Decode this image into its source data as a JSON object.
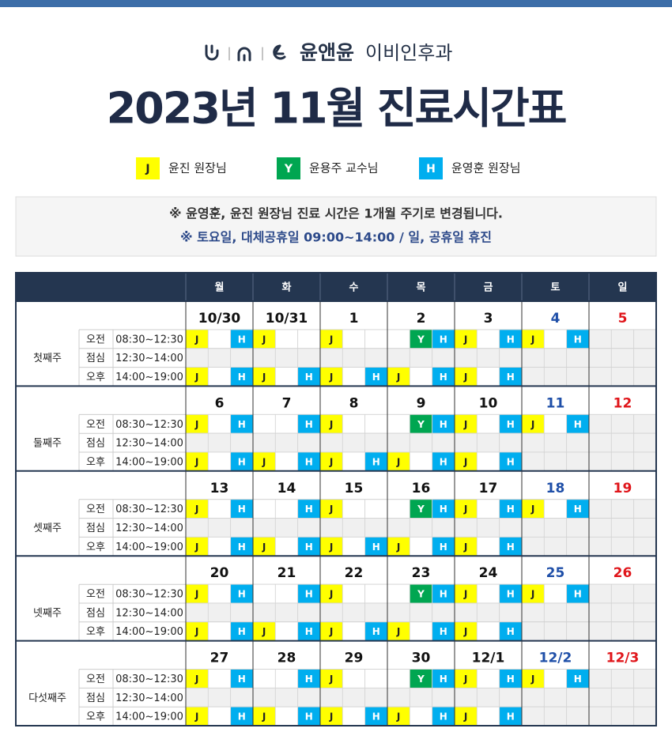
{
  "header": {
    "brand": "윤앤윤",
    "department": "이비인후과",
    "title": "2023년 11월 진료시간표"
  },
  "legend": [
    {
      "key": "J",
      "label": "윤진 원장님",
      "color": "#ffff00",
      "text_color": "#222222"
    },
    {
      "key": "Y",
      "label": "윤용주 교수님",
      "color": "#00a651",
      "text_color": "#ffffff"
    },
    {
      "key": "H",
      "label": "윤영훈 원장님",
      "color": "#00aeef",
      "text_color": "#ffffff"
    }
  ],
  "notices": [
    "※ 윤영훈, 윤진 원장님 진료 시간은 1개월 주기로 변경됩니다.",
    "※ 토요일, 대체공휴일  09:00~14:00 / 일, 공휴일 휴진"
  ],
  "table": {
    "days": [
      "월",
      "화",
      "수",
      "목",
      "금",
      "토",
      "일"
    ],
    "sessions": [
      {
        "label": "오전",
        "time": "08:30~12:30"
      },
      {
        "label": "점심",
        "time": "12:30~14:00"
      },
      {
        "label": "오후",
        "time": "14:00~19:00"
      }
    ],
    "weeks": [
      {
        "label": "첫째주",
        "dates": [
          "10/30",
          "10/31",
          "1",
          "2",
          "3",
          "4",
          "5"
        ],
        "slots": [
          [
            [
              "J",
              null,
              "H"
            ],
            [
              "J",
              null,
              null
            ],
            [
              "J",
              null,
              null
            ],
            [
              null,
              "Y",
              "H"
            ],
            [
              "J",
              null,
              "H"
            ],
            [
              "J",
              null,
              "H"
            ],
            [
              null,
              null,
              null
            ]
          ],
          [
            [
              null,
              null,
              null
            ],
            [
              null,
              null,
              null
            ],
            [
              null,
              null,
              null
            ],
            [
              null,
              null,
              null
            ],
            [
              null,
              null,
              null
            ],
            [
              null,
              null,
              null
            ],
            [
              null,
              null,
              null
            ]
          ],
          [
            [
              "J",
              null,
              "H"
            ],
            [
              "J",
              null,
              "H"
            ],
            [
              "J",
              null,
              "H"
            ],
            [
              "J",
              null,
              "H"
            ],
            [
              "J",
              null,
              "H"
            ],
            [
              null,
              null,
              null
            ],
            [
              null,
              null,
              null
            ]
          ]
        ]
      },
      {
        "label": "둘째주",
        "dates": [
          "6",
          "7",
          "8",
          "9",
          "10",
          "11",
          "12"
        ],
        "slots": [
          [
            [
              "J",
              null,
              "H"
            ],
            [
              null,
              null,
              "H"
            ],
            [
              "J",
              null,
              null
            ],
            [
              null,
              "Y",
              "H"
            ],
            [
              "J",
              null,
              "H"
            ],
            [
              "J",
              null,
              "H"
            ],
            [
              null,
              null,
              null
            ]
          ],
          [
            [
              null,
              null,
              null
            ],
            [
              null,
              null,
              null
            ],
            [
              null,
              null,
              null
            ],
            [
              null,
              null,
              null
            ],
            [
              null,
              null,
              null
            ],
            [
              null,
              null,
              null
            ],
            [
              null,
              null,
              null
            ]
          ],
          [
            [
              "J",
              null,
              "H"
            ],
            [
              "J",
              null,
              "H"
            ],
            [
              "J",
              null,
              "H"
            ],
            [
              "J",
              null,
              "H"
            ],
            [
              "J",
              null,
              "H"
            ],
            [
              null,
              null,
              null
            ],
            [
              null,
              null,
              null
            ]
          ]
        ]
      },
      {
        "label": "셋째주",
        "dates": [
          "13",
          "14",
          "15",
          "16",
          "17",
          "18",
          "19"
        ],
        "slots": [
          [
            [
              "J",
              null,
              "H"
            ],
            [
              null,
              null,
              "H"
            ],
            [
              "J",
              null,
              null
            ],
            [
              null,
              "Y",
              "H"
            ],
            [
              "J",
              null,
              "H"
            ],
            [
              "J",
              null,
              "H"
            ],
            [
              null,
              null,
              null
            ]
          ],
          [
            [
              null,
              null,
              null
            ],
            [
              null,
              null,
              null
            ],
            [
              null,
              null,
              null
            ],
            [
              null,
              null,
              null
            ],
            [
              null,
              null,
              null
            ],
            [
              null,
              null,
              null
            ],
            [
              null,
              null,
              null
            ]
          ],
          [
            [
              "J",
              null,
              "H"
            ],
            [
              "J",
              null,
              "H"
            ],
            [
              "J",
              null,
              "H"
            ],
            [
              "J",
              null,
              "H"
            ],
            [
              "J",
              null,
              "H"
            ],
            [
              null,
              null,
              null
            ],
            [
              null,
              null,
              null
            ]
          ]
        ]
      },
      {
        "label": "넷째주",
        "dates": [
          "20",
          "21",
          "22",
          "23",
          "24",
          "25",
          "26"
        ],
        "slots": [
          [
            [
              "J",
              null,
              "H"
            ],
            [
              null,
              null,
              "H"
            ],
            [
              "J",
              null,
              null
            ],
            [
              null,
              "Y",
              "H"
            ],
            [
              "J",
              null,
              "H"
            ],
            [
              "J",
              null,
              "H"
            ],
            [
              null,
              null,
              null
            ]
          ],
          [
            [
              null,
              null,
              null
            ],
            [
              null,
              null,
              null
            ],
            [
              null,
              null,
              null
            ],
            [
              null,
              null,
              null
            ],
            [
              null,
              null,
              null
            ],
            [
              null,
              null,
              null
            ],
            [
              null,
              null,
              null
            ]
          ],
          [
            [
              "J",
              null,
              "H"
            ],
            [
              "J",
              null,
              "H"
            ],
            [
              "J",
              null,
              "H"
            ],
            [
              "J",
              null,
              "H"
            ],
            [
              "J",
              null,
              "H"
            ],
            [
              null,
              null,
              null
            ],
            [
              null,
              null,
              null
            ]
          ]
        ]
      },
      {
        "label": "다섯째주",
        "dates": [
          "27",
          "28",
          "29",
          "30",
          "12/1",
          "12/2",
          "12/3"
        ],
        "slots": [
          [
            [
              "J",
              null,
              "H"
            ],
            [
              null,
              null,
              "H"
            ],
            [
              "J",
              null,
              null
            ],
            [
              null,
              "Y",
              "H"
            ],
            [
              "J",
              null,
              "H"
            ],
            [
              "J",
              null,
              "H"
            ],
            [
              null,
              null,
              null
            ]
          ],
          [
            [
              null,
              null,
              null
            ],
            [
              null,
              null,
              null
            ],
            [
              null,
              null,
              null
            ],
            [
              null,
              null,
              null
            ],
            [
              null,
              null,
              null
            ],
            [
              null,
              null,
              null
            ],
            [
              null,
              null,
              null
            ]
          ],
          [
            [
              "J",
              null,
              "H"
            ],
            [
              "J",
              null,
              "H"
            ],
            [
              "J",
              null,
              "H"
            ],
            [
              "J",
              null,
              "H"
            ],
            [
              "J",
              null,
              "H"
            ],
            [
              null,
              null,
              null
            ],
            [
              null,
              null,
              null
            ]
          ]
        ]
      }
    ]
  }
}
